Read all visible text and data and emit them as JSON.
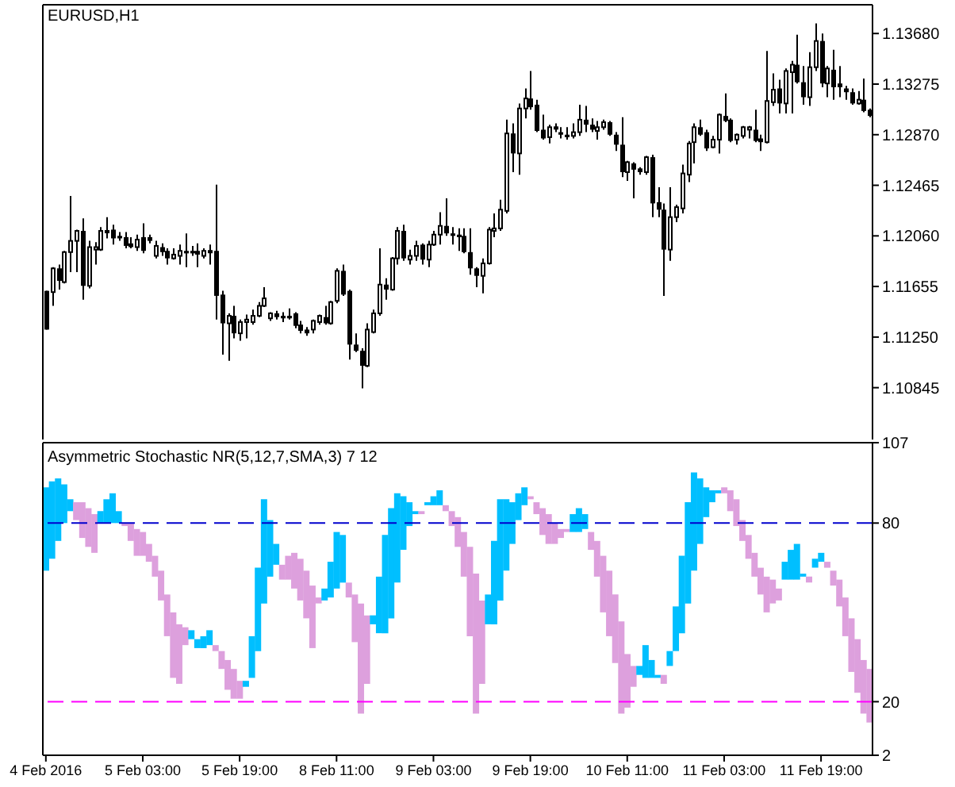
{
  "chart_data": [
    {
      "type": "candlestick",
      "title": "EURUSD,H1",
      "categories": [
        null,
        null,
        null,
        null,
        null,
        null,
        null,
        null,
        null,
        null,
        null,
        null,
        null,
        null,
        null,
        null,
        null,
        null,
        null,
        null,
        null,
        null,
        null,
        null,
        null,
        null,
        null,
        null,
        null,
        null,
        null,
        null,
        null,
        null,
        null,
        null,
        null,
        null,
        null,
        null,
        null,
        null,
        null,
        null,
        null,
        null,
        null,
        null,
        null,
        null,
        null,
        null,
        null,
        null,
        null,
        null,
        null,
        null,
        null,
        null,
        null,
        null,
        null,
        null,
        null,
        null,
        null,
        null,
        null,
        null,
        null,
        null,
        null,
        null,
        null,
        null,
        null,
        null,
        null,
        null,
        null,
        null,
        null,
        null,
        null,
        null,
        null,
        null,
        null,
        null,
        null,
        null,
        null,
        null,
        null,
        null,
        null,
        null,
        null,
        null,
        null,
        null,
        null,
        null,
        null,
        null,
        null,
        null,
        null,
        null,
        null,
        null,
        null,
        null,
        null,
        null,
        null,
        null,
        null,
        null,
        null,
        null,
        null,
        null,
        null,
        null,
        null,
        null,
        null,
        null,
        null,
        null,
        null,
        null,
        null,
        null,
        null
      ],
      "ohlc": [
        [
          1.1162,
          1.1162,
          1.1131,
          1.1131
        ],
        [
          1.1161,
          1.1181,
          1.115,
          1.118
        ],
        [
          1.118,
          1.1183,
          1.1163,
          1.117
        ],
        [
          1.1169,
          1.1194,
          1.1168,
          1.1193
        ],
        [
          1.1193,
          1.1238,
          1.1177,
          1.1202
        ],
        [
          1.1202,
          1.1211,
          1.1177,
          1.121
        ],
        [
          1.121,
          1.122,
          1.1155,
          1.1166
        ],
        [
          1.1166,
          1.1202,
          1.1164,
          1.1197
        ],
        [
          1.1195,
          1.1201,
          1.1183,
          1.1197
        ],
        [
          1.1195,
          1.1213,
          1.1194,
          1.121
        ],
        [
          1.1209,
          1.1221,
          1.1204,
          1.121
        ],
        [
          1.1211,
          1.1215,
          1.1199,
          1.1204
        ],
        [
          1.1206,
          1.1209,
          1.1202,
          1.1204
        ],
        [
          1.1205,
          1.1209,
          1.1196,
          1.1198
        ],
        [
          1.12,
          1.1205,
          1.1196,
          1.1197
        ],
        [
          1.1197,
          1.1207,
          1.1194,
          1.1203
        ],
        [
          1.1205,
          1.1216,
          1.1192,
          1.1194
        ],
        [
          1.1205,
          1.1207,
          1.12,
          1.1202
        ],
        [
          1.119,
          1.1202,
          1.1188,
          1.1198
        ],
        [
          1.1197,
          1.12,
          1.119,
          1.1193
        ],
        [
          1.1194,
          1.1196,
          1.1183,
          1.1188
        ],
        [
          1.1188,
          1.1196,
          1.1187,
          1.1191
        ],
        [
          1.119,
          1.1199,
          1.1183,
          1.1194
        ],
        [
          1.1194,
          1.1208,
          1.1181,
          1.1192
        ],
        [
          1.1194,
          1.1198,
          1.119,
          1.1192
        ],
        [
          1.1194,
          1.12,
          1.1181,
          1.1191
        ],
        [
          1.119,
          1.1196,
          1.1188,
          1.1194
        ],
        [
          1.1193,
          1.1199,
          1.1183,
          1.1194
        ],
        [
          1.1194,
          1.1247,
          1.1139,
          1.1158
        ],
        [
          1.1159,
          1.1162,
          1.1111,
          1.1136
        ],
        [
          1.1136,
          1.1144,
          1.1106,
          1.1142
        ],
        [
          1.1142,
          1.115,
          1.1124,
          1.1128
        ],
        [
          1.1128,
          1.1139,
          1.1122,
          1.1137
        ],
        [
          1.1137,
          1.1143,
          1.1124,
          1.1139
        ],
        [
          1.1137,
          1.1147,
          1.1135,
          1.1142
        ],
        [
          1.1142,
          1.1153,
          1.1141,
          1.115
        ],
        [
          1.115,
          1.1165,
          1.1149,
          1.1156
        ],
        [
          1.114,
          1.1145,
          1.1138,
          1.1144
        ],
        [
          1.1144,
          1.1146,
          1.1139,
          1.1141
        ],
        [
          1.1142,
          1.1145,
          1.1137,
          1.114
        ],
        [
          1.1142,
          1.1148,
          1.1139,
          1.114
        ],
        [
          1.1144,
          1.1145,
          1.1132,
          1.1134
        ],
        [
          1.1135,
          1.1138,
          1.1128,
          1.113
        ],
        [
          1.1131,
          1.1133,
          1.1126,
          1.1128
        ],
        [
          1.1131,
          1.1139,
          1.1128,
          1.1138
        ],
        [
          1.1137,
          1.1143,
          1.1135,
          1.1142
        ],
        [
          1.1141,
          1.115,
          1.1135,
          1.1136
        ],
        [
          1.1136,
          1.1154,
          1.1135,
          1.1153
        ],
        [
          1.1154,
          1.118,
          1.1152,
          1.1178
        ],
        [
          1.1178,
          1.1183,
          1.1158,
          1.1159
        ],
        [
          1.1162,
          1.1163,
          1.1107,
          1.1119
        ],
        [
          1.1119,
          1.1128,
          1.1113,
          1.1114
        ],
        [
          1.1114,
          1.1116,
          1.1084,
          1.1102
        ],
        [
          1.1102,
          1.1136,
          1.1101,
          1.1131
        ],
        [
          1.1129,
          1.1147,
          1.1128,
          1.1144
        ],
        [
          1.1144,
          1.1196,
          1.1142,
          1.1167
        ],
        [
          1.1167,
          1.1172,
          1.1155,
          1.1163
        ],
        [
          1.1163,
          1.1189,
          1.1162,
          1.1188
        ],
        [
          1.1188,
          1.1213,
          1.1183,
          1.121
        ],
        [
          1.121,
          1.1215,
          1.1186,
          1.1188
        ],
        [
          1.1187,
          1.1195,
          1.1183,
          1.119
        ],
        [
          1.119,
          1.1202,
          1.1186,
          1.1198
        ],
        [
          1.1199,
          1.12,
          1.1183,
          1.1187
        ],
        [
          1.1187,
          1.1202,
          1.1181,
          1.1199
        ],
        [
          1.1199,
          1.121,
          1.1198,
          1.1207
        ],
        [
          1.1207,
          1.1225,
          1.1199,
          1.1214
        ],
        [
          1.1214,
          1.1236,
          1.1206,
          1.1208
        ],
        [
          1.1208,
          1.1213,
          1.1199,
          1.1206
        ],
        [
          1.1207,
          1.1212,
          1.1194,
          1.1205
        ],
        [
          1.1206,
          1.1212,
          1.1192,
          1.1193
        ],
        [
          1.1193,
          1.1212,
          1.1175,
          1.118
        ],
        [
          1.118,
          1.1181,
          1.1165,
          1.1174
        ],
        [
          1.1174,
          1.1188,
          1.116,
          1.1184
        ],
        [
          1.1184,
          1.1213,
          1.1183,
          1.1211
        ],
        [
          1.121,
          1.1224,
          1.1205,
          1.1212
        ],
        [
          1.1212,
          1.1235,
          1.121,
          1.1227
        ],
        [
          1.1226,
          1.1299,
          1.1224,
          1.1288
        ],
        [
          1.1288,
          1.1296,
          1.1257,
          1.1272
        ],
        [
          1.1272,
          1.1312,
          1.1255,
          1.1308
        ],
        [
          1.1308,
          1.1324,
          1.13,
          1.1316
        ],
        [
          1.1316,
          1.1338,
          1.1307,
          1.1309
        ],
        [
          1.1311,
          1.1315,
          1.1289,
          1.129
        ],
        [
          1.1291,
          1.1303,
          1.1283,
          1.1284
        ],
        [
          1.1285,
          1.1295,
          1.128,
          1.1293
        ],
        [
          1.1292,
          1.1296,
          1.1289,
          1.1293
        ],
        [
          1.1289,
          1.1293,
          1.1284,
          1.1287
        ],
        [
          1.1287,
          1.1293,
          1.1283,
          1.1285
        ],
        [
          1.1286,
          1.1296,
          1.1284,
          1.1289
        ],
        [
          1.1289,
          1.1311,
          1.1286,
          1.1299
        ],
        [
          1.1299,
          1.131,
          1.1289,
          1.1295
        ],
        [
          1.1295,
          1.13,
          1.1289,
          1.1291
        ],
        [
          1.129,
          1.1298,
          1.1283,
          1.1293
        ],
        [
          1.1293,
          1.1299,
          1.1291,
          1.1297
        ],
        [
          1.1297,
          1.1298,
          1.1286,
          1.1287
        ],
        [
          1.1287,
          1.1289,
          1.1274,
          1.1279
        ],
        [
          1.1279,
          1.1301,
          1.1253,
          1.1257
        ],
        [
          1.1257,
          1.1266,
          1.125,
          1.1265
        ],
        [
          1.1264,
          1.1265,
          1.1236,
          1.1259
        ],
        [
          1.126,
          1.1261,
          1.1255,
          1.1257
        ],
        [
          1.1257,
          1.127,
          1.1255,
          1.1269
        ],
        [
          1.1269,
          1.1271,
          1.1221,
          1.1232
        ],
        [
          1.1233,
          1.1245,
          1.1221,
          1.1227
        ],
        [
          1.1227,
          1.1232,
          1.1158,
          1.1195
        ],
        [
          1.1195,
          1.1245,
          1.1186,
          1.1221
        ],
        [
          1.1221,
          1.1231,
          1.1217,
          1.1229
        ],
        [
          1.1228,
          1.1263,
          1.1224,
          1.1256
        ],
        [
          1.1255,
          1.1282,
          1.1249,
          1.128
        ],
        [
          1.1281,
          1.1296,
          1.1264,
          1.1293
        ],
        [
          1.1293,
          1.1299,
          1.1286,
          1.1287
        ],
        [
          1.1289,
          1.1291,
          1.1274,
          1.1276
        ],
        [
          1.1277,
          1.1286,
          1.1276,
          1.1283
        ],
        [
          1.1283,
          1.1304,
          1.1272,
          1.1303
        ],
        [
          1.1302,
          1.132,
          1.1297,
          1.1298
        ],
        [
          1.1299,
          1.13,
          1.1281,
          1.1282
        ],
        [
          1.1283,
          1.1288,
          1.1279,
          1.1287
        ],
        [
          1.1286,
          1.1294,
          1.1284,
          1.1293
        ],
        [
          1.1291,
          1.1294,
          1.1284,
          1.1293
        ],
        [
          1.1291,
          1.1307,
          1.1281,
          1.1282
        ],
        [
          1.1284,
          1.1287,
          1.1274,
          1.1281
        ],
        [
          1.1281,
          1.1354,
          1.128,
          1.1314
        ],
        [
          1.1313,
          1.1336,
          1.131,
          1.1323
        ],
        [
          1.1324,
          1.1331,
          1.1304,
          1.1312
        ],
        [
          1.1312,
          1.134,
          1.1304,
          1.1338
        ],
        [
          1.1337,
          1.1346,
          1.1304,
          1.1343
        ],
        [
          1.1343,
          1.1367,
          1.1328,
          1.1329
        ],
        [
          1.1329,
          1.1342,
          1.1311,
          1.1317
        ],
        [
          1.1317,
          1.1353,
          1.131,
          1.1341
        ],
        [
          1.1341,
          1.1376,
          1.1338,
          1.1362
        ],
        [
          1.1362,
          1.1368,
          1.1325,
          1.1328
        ],
        [
          1.1328,
          1.1342,
          1.1317,
          1.134
        ],
        [
          1.1339,
          1.1355,
          1.1315,
          1.1325
        ],
        [
          1.1328,
          1.1342,
          1.1317,
          1.1325
        ],
        [
          1.1324,
          1.1326,
          1.1315,
          1.1321
        ],
        [
          1.1321,
          1.1324,
          1.1311,
          1.1312
        ],
        [
          1.1312,
          1.1322,
          1.1311,
          1.1315
        ],
        [
          1.1315,
          1.1332,
          1.1305,
          1.1306
        ],
        [
          1.1307,
          1.1308,
          1.1301,
          1.1302
        ]
      ],
      "ylim": [
        1.1043,
        1.1391
      ],
      "yticks": [
        1.10845,
        {
          "value": 1.1125,
          "label": "1.11250"
        },
        1.11655,
        {
          "value": 1.1206,
          "label": "1.12060"
        },
        1.12465,
        {
          "value": 1.1287,
          "label": "1.12870"
        },
        1.13275,
        {
          "value": 1.1368,
          "label": "1.13680"
        }
      ],
      "tick_labels": "y"
    },
    {
      "type": "bar",
      "title": "Asymmetric Stochastic NR(5,12,7,SMA,3) 7 12",
      "categories": [
        "4 Feb 2016",
        null,
        null,
        null,
        null,
        null,
        null,
        null,
        null,
        null,
        null,
        null,
        null,
        null,
        null,
        null,
        "5 Feb 03:00",
        null,
        null,
        null,
        null,
        null,
        null,
        null,
        null,
        null,
        null,
        null,
        null,
        null,
        null,
        null,
        "5 Feb 19:00",
        null,
        null,
        null,
        null,
        null,
        null,
        null,
        null,
        null,
        null,
        null,
        null,
        null,
        null,
        null,
        "8 Feb 11:00",
        null,
        null,
        null,
        null,
        null,
        null,
        null,
        null,
        null,
        null,
        null,
        null,
        null,
        null,
        null,
        "9 Feb 03:00",
        null,
        null,
        null,
        null,
        null,
        null,
        null,
        null,
        null,
        null,
        null,
        null,
        null,
        null,
        null,
        "9 Feb 19:00",
        null,
        null,
        null,
        null,
        null,
        null,
        null,
        null,
        null,
        null,
        null,
        null,
        null,
        null,
        null,
        "10 Feb 11:00",
        null,
        null,
        null,
        null,
        null,
        null,
        null,
        null,
        null,
        null,
        null,
        null,
        null,
        null,
        null,
        "11 Feb 03:00",
        null,
        null,
        null,
        null,
        null,
        null,
        null,
        null,
        null,
        null,
        null,
        null,
        null,
        null,
        null,
        "11 Feb 19:00",
        null,
        null,
        null,
        null,
        null,
        null,
        null,
        null
      ],
      "base": [
        64,
        68,
        74,
        80,
        84,
        81,
        75,
        72,
        70,
        80,
        80,
        80,
        80,
        79,
        74,
        69,
        69,
        67,
        62,
        54,
        42,
        28,
        26,
        39,
        41,
        38,
        38,
        39,
        37,
        31,
        24,
        21,
        21,
        25,
        28,
        37,
        53,
        62,
        66,
        61,
        61,
        58,
        54,
        48,
        38,
        53,
        54,
        55,
        58,
        60,
        55,
        40,
        16,
        26,
        46,
        43,
        43,
        48,
        60,
        71,
        79,
        83,
        83,
        86,
        86,
        86,
        84,
        79,
        72,
        62,
        42,
        16,
        26,
        46,
        46,
        54,
        64,
        73,
        81,
        86,
        88,
        83,
        76,
        73,
        73,
        75,
        77,
        77,
        77,
        78,
        71,
        62,
        50,
        42,
        33,
        16,
        18,
        25,
        29,
        28,
        28,
        28,
        26,
        32,
        37,
        43,
        53,
        64,
        73,
        82,
        87,
        90,
        90,
        84,
        79,
        74,
        68,
        62,
        56,
        50,
        53,
        54,
        61,
        61,
        61,
        62,
        60,
        65,
        67,
        65,
        59,
        52,
        42,
        30,
        23,
        16,
        13
      ],
      "values": [
        28,
        26,
        21,
        13,
        4,
        6,
        12,
        13,
        13,
        4,
        8,
        10,
        4,
        1,
        6,
        9,
        8,
        6,
        7,
        10,
        14,
        22,
        20,
        6,
        3,
        3,
        4,
        5,
        2,
        6,
        10,
        10,
        6,
        2,
        14,
        28,
        35,
        19,
        7,
        5,
        8,
        12,
        14,
        16,
        21,
        2,
        4,
        12,
        19,
        16,
        5,
        16,
        37,
        23,
        3,
        19,
        33,
        37,
        30,
        18,
        8,
        1,
        1,
        1,
        3,
        5,
        2,
        5,
        10,
        15,
        30,
        47,
        28,
        10,
        28,
        34,
        24,
        14,
        9,
        6,
        1,
        4,
        9,
        10,
        7,
        3,
        1,
        6,
        8,
        5,
        6,
        12,
        19,
        22,
        23,
        31,
        18,
        7,
        3,
        11,
        6,
        1,
        3,
        5,
        15,
        26,
        34,
        33,
        22,
        10,
        4,
        1,
        2,
        7,
        9,
        7,
        8,
        8,
        9,
        12,
        8,
        4,
        6,
        10,
        12,
        1,
        2,
        3,
        3,
        2,
        5,
        9,
        13,
        18,
        18,
        18,
        18
      ],
      "colors": [
        "#00bfff",
        "#00bfff",
        "#00bfff",
        "#00bfff",
        "#00bfff",
        "#dda0dd",
        "#dda0dd",
        "#dda0dd",
        "#dda0dd",
        "#00bfff",
        "#00bfff",
        "#00bfff",
        "#00bfff",
        "#dda0dd",
        "#dda0dd",
        "#dda0dd",
        "#dda0dd",
        "#dda0dd",
        "#dda0dd",
        "#dda0dd",
        "#dda0dd",
        "#dda0dd",
        "#dda0dd",
        "#dda0dd",
        "#00bfff",
        "#00bfff",
        "#00bfff",
        "#00bfff",
        "#dda0dd",
        "#dda0dd",
        "#dda0dd",
        "#dda0dd",
        "#dda0dd",
        "#00bfff",
        "#00bfff",
        "#00bfff",
        "#00bfff",
        "#00bfff",
        "#00bfff",
        "#dda0dd",
        "#dda0dd",
        "#dda0dd",
        "#dda0dd",
        "#dda0dd",
        "#dda0dd",
        "#dda0dd",
        "#00bfff",
        "#00bfff",
        "#00bfff",
        "#00bfff",
        "#dda0dd",
        "#dda0dd",
        "#dda0dd",
        "#dda0dd",
        "#00bfff",
        "#00bfff",
        "#00bfff",
        "#00bfff",
        "#00bfff",
        "#00bfff",
        "#00bfff",
        "#00bfff",
        "#dda0dd",
        "#00bfff",
        "#00bfff",
        "#00bfff",
        "#dda0dd",
        "#dda0dd",
        "#dda0dd",
        "#dda0dd",
        "#dda0dd",
        "#dda0dd",
        "#dda0dd",
        "#00bfff",
        "#00bfff",
        "#00bfff",
        "#00bfff",
        "#00bfff",
        "#00bfff",
        "#00bfff",
        "#dda0dd",
        "#dda0dd",
        "#dda0dd",
        "#dda0dd",
        "#dda0dd",
        "#dda0dd",
        "#dda0dd",
        "#00bfff",
        "#00bfff",
        "#00bfff",
        "#dda0dd",
        "#dda0dd",
        "#dda0dd",
        "#dda0dd",
        "#dda0dd",
        "#dda0dd",
        "#dda0dd",
        "#dda0dd",
        "#00bfff",
        "#00bfff",
        "#00bfff",
        "#00bfff",
        "#dda0dd",
        "#00bfff",
        "#00bfff",
        "#00bfff",
        "#00bfff",
        "#00bfff",
        "#00bfff",
        "#00bfff",
        "#00bfff",
        "#00bfff",
        "#dda0dd",
        "#dda0dd",
        "#dda0dd",
        "#dda0dd",
        "#dda0dd",
        "#dda0dd",
        "#dda0dd",
        "#dda0dd",
        "#dda0dd",
        "#dda0dd",
        "#00bfff",
        "#00bfff",
        "#00bfff",
        "#00bfff",
        "#dda0dd",
        "#00bfff",
        "#00bfff",
        "#dda0dd",
        "#dda0dd",
        "#dda0dd",
        "#dda0dd",
        "#dda0dd",
        "#dda0dd",
        "#dda0dd",
        "#dda0dd"
      ],
      "ylim": [
        2,
        107
      ],
      "yticks": [
        2,
        20,
        80,
        107
      ],
      "ref_lines": [
        {
          "axis": "y",
          "value": 80,
          "color": "#0000cd",
          "line_style": "dashed"
        },
        {
          "axis": "y",
          "value": 20,
          "color": "#ff00ff",
          "line_style": "dashed"
        }
      ]
    }
  ]
}
